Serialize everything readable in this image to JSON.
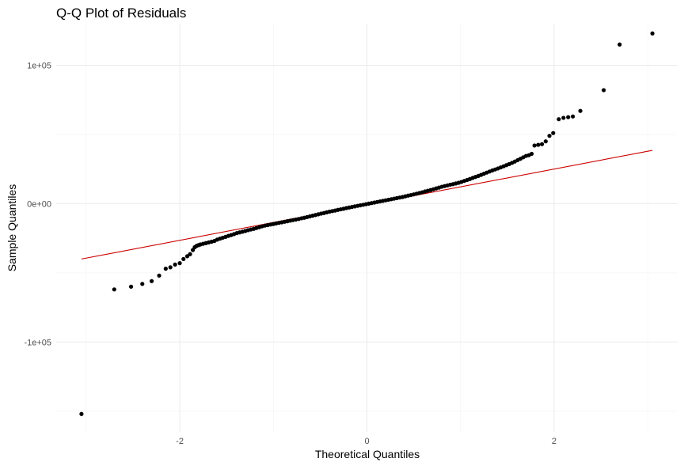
{
  "chart_data": {
    "type": "scatter",
    "title": "Q-Q Plot of Residuals",
    "xlabel": "Theoretical Quantiles",
    "ylabel": "Sample Quantiles",
    "xlim": [
      -3.32,
      3.32
    ],
    "ylim": [
      -165000,
      130000
    ],
    "x_ticks": [
      {
        "value": -2,
        "label": "-2"
      },
      {
        "value": 0,
        "label": "0"
      },
      {
        "value": 2,
        "label": "2"
      }
    ],
    "x_minor_ticks": [
      -3,
      -1,
      1,
      3
    ],
    "y_ticks": [
      {
        "value": -100000,
        "label": "-1e+05"
      },
      {
        "value": 0,
        "label": "0e+00"
      },
      {
        "value": 100000,
        "label": "1e+05"
      }
    ],
    "y_minor_ticks": [
      -150000,
      -50000,
      50000
    ],
    "grid": true,
    "legend": "none",
    "point_color": "#000000",
    "reference_line": {
      "color": "#cc0000",
      "x": [
        -3.05,
        3.05
      ],
      "y": [
        -40000,
        38500
      ]
    },
    "series": [
      {
        "points": [
          [
            -3.05,
            -152000
          ],
          [
            -2.7,
            -62000
          ],
          [
            -2.52,
            -60000
          ],
          [
            -2.4,
            -58000
          ],
          [
            -2.3,
            -56000
          ],
          [
            -2.22,
            -52000
          ],
          [
            -2.15,
            -47000
          ],
          [
            -2.1,
            -46000
          ],
          [
            -2.05,
            -44000
          ],
          [
            -2.0,
            -43000
          ],
          [
            -1.96,
            -40000
          ],
          [
            -1.92,
            -38000
          ],
          [
            -1.89,
            -36500
          ],
          [
            -1.86,
            -33500
          ],
          [
            -1.84,
            -31500
          ],
          [
            -1.82,
            -30500
          ],
          [
            -1.8,
            -30000
          ],
          [
            -1.78,
            -29500
          ],
          [
            -1.75,
            -29000
          ],
          [
            -1.72,
            -28500
          ],
          [
            -1.69,
            -28000
          ],
          [
            -1.66,
            -27500
          ],
          [
            -1.63,
            -27000
          ],
          [
            -1.6,
            -26000
          ],
          [
            -1.57,
            -25300
          ],
          [
            -1.54,
            -24600
          ],
          [
            -1.51,
            -24000
          ],
          [
            -1.48,
            -23300
          ],
          [
            -1.45,
            -22700
          ],
          [
            -1.42,
            -22000
          ],
          [
            -1.39,
            -21300
          ],
          [
            -1.36,
            -20800
          ],
          [
            -1.33,
            -20300
          ],
          [
            -1.3,
            -19800
          ],
          [
            -1.27,
            -19200
          ],
          [
            -1.24,
            -18700
          ],
          [
            -1.21,
            -18200
          ],
          [
            -1.18,
            -17600
          ],
          [
            -1.15,
            -17000
          ],
          [
            -1.12,
            -16400
          ],
          [
            -1.09,
            -15900
          ],
          [
            -1.06,
            -15500
          ],
          [
            -1.03,
            -15100
          ],
          [
            -1.0,
            -14700
          ],
          [
            -0.97,
            -14300
          ],
          [
            -0.94,
            -13900
          ],
          [
            -0.91,
            -13500
          ],
          [
            -0.88,
            -13100
          ],
          [
            -0.85,
            -12700
          ],
          [
            -0.82,
            -12300
          ],
          [
            -0.79,
            -11900
          ],
          [
            -0.76,
            -11500
          ],
          [
            -0.73,
            -11100
          ],
          [
            -0.7,
            -10600
          ],
          [
            -0.67,
            -10200
          ],
          [
            -0.64,
            -9700
          ],
          [
            -0.61,
            -9200
          ],
          [
            -0.58,
            -8700
          ],
          [
            -0.55,
            -8200
          ],
          [
            -0.52,
            -7700
          ],
          [
            -0.49,
            -7200
          ],
          [
            -0.46,
            -6800
          ],
          [
            -0.43,
            -6300
          ],
          [
            -0.4,
            -5800
          ],
          [
            -0.37,
            -5400
          ],
          [
            -0.34,
            -5000
          ],
          [
            -0.31,
            -4500
          ],
          [
            -0.28,
            -4100
          ],
          [
            -0.25,
            -3700
          ],
          [
            -0.22,
            -3200
          ],
          [
            -0.19,
            -2800
          ],
          [
            -0.16,
            -2400
          ],
          [
            -0.13,
            -2000
          ],
          [
            -0.1,
            -1600
          ],
          [
            -0.07,
            -1200
          ],
          [
            -0.04,
            -800
          ],
          [
            -0.01,
            -400
          ],
          [
            0.02,
            0
          ],
          [
            0.05,
            400
          ],
          [
            0.08,
            800
          ],
          [
            0.11,
            1200
          ],
          [
            0.14,
            1600
          ],
          [
            0.17,
            2000
          ],
          [
            0.2,
            2400
          ],
          [
            0.23,
            2800
          ],
          [
            0.26,
            3200
          ],
          [
            0.29,
            3600
          ],
          [
            0.32,
            4000
          ],
          [
            0.35,
            4400
          ],
          [
            0.38,
            4800
          ],
          [
            0.41,
            5300
          ],
          [
            0.44,
            5800
          ],
          [
            0.47,
            6200
          ],
          [
            0.5,
            6700
          ],
          [
            0.53,
            7200
          ],
          [
            0.56,
            7700
          ],
          [
            0.59,
            8200
          ],
          [
            0.62,
            8800
          ],
          [
            0.65,
            9300
          ],
          [
            0.68,
            9800
          ],
          [
            0.71,
            10400
          ],
          [
            0.74,
            11000
          ],
          [
            0.77,
            11600
          ],
          [
            0.8,
            12200
          ],
          [
            0.83,
            12700
          ],
          [
            0.86,
            13200
          ],
          [
            0.89,
            13700
          ],
          [
            0.92,
            14100
          ],
          [
            0.95,
            14600
          ],
          [
            0.98,
            15100
          ],
          [
            1.01,
            15700
          ],
          [
            1.04,
            16400
          ],
          [
            1.07,
            17100
          ],
          [
            1.1,
            17800
          ],
          [
            1.13,
            18600
          ],
          [
            1.16,
            19300
          ],
          [
            1.19,
            20000
          ],
          [
            1.22,
            20800
          ],
          [
            1.25,
            21600
          ],
          [
            1.28,
            22400
          ],
          [
            1.31,
            23200
          ],
          [
            1.34,
            24000
          ],
          [
            1.37,
            24700
          ],
          [
            1.4,
            25400
          ],
          [
            1.43,
            26200
          ],
          [
            1.46,
            27000
          ],
          [
            1.49,
            27800
          ],
          [
            1.52,
            28600
          ],
          [
            1.55,
            29500
          ],
          [
            1.58,
            30400
          ],
          [
            1.61,
            31400
          ],
          [
            1.64,
            32400
          ],
          [
            1.67,
            33500
          ],
          [
            1.7,
            34500
          ],
          [
            1.73,
            35000
          ],
          [
            1.76,
            36000
          ],
          [
            1.79,
            42000
          ],
          [
            1.83,
            42500
          ],
          [
            1.87,
            43000
          ],
          [
            1.91,
            45000
          ],
          [
            1.95,
            49000
          ],
          [
            1.99,
            51000
          ],
          [
            2.05,
            61000
          ],
          [
            2.1,
            62000
          ],
          [
            2.15,
            62500
          ],
          [
            2.2,
            63000
          ],
          [
            2.28,
            67000
          ],
          [
            2.53,
            82000
          ],
          [
            2.7,
            115000
          ],
          [
            3.05,
            123000
          ]
        ]
      }
    ]
  }
}
